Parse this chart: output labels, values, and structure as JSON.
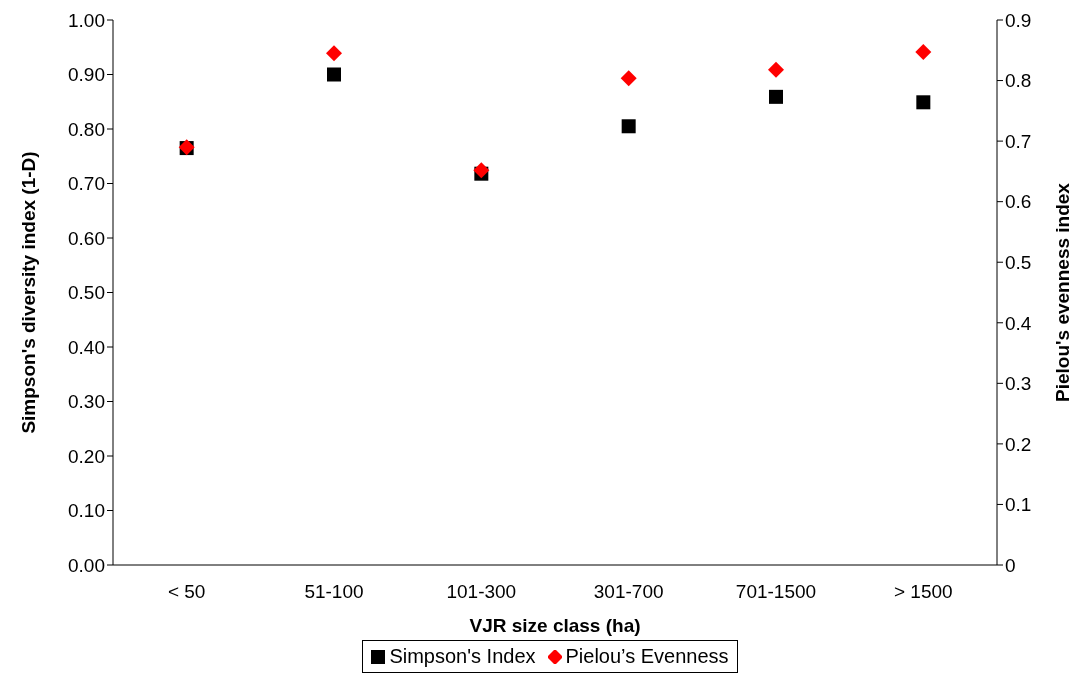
{
  "chart_data": {
    "type": "scatter",
    "xlabel": "VJR size class (ha)",
    "ylabel": "Simpson's diversity index (1-D)",
    "y2label": "Pielou's evenness index",
    "categories": [
      "< 50",
      "51-100",
      "101-300",
      "301-700",
      "701-1500",
      "> 1500"
    ],
    "series": [
      {
        "name": "Simpson's Index",
        "color": "#000000",
        "marker": "square",
        "values": [
          0.765,
          0.9,
          0.718,
          0.805,
          0.859,
          0.849
        ]
      },
      {
        "name": "Pielou’s Evenness",
        "color": "#ff0000",
        "marker": "diamond",
        "axis": "y2",
        "values": [
          0.69,
          0.845,
          0.652,
          0.804,
          0.818,
          0.847
        ]
      }
    ],
    "ylim": [
      0,
      1
    ],
    "yticks": [
      {
        "value": 0,
        "label": "0.00"
      },
      {
        "value": 0.1,
        "label": "0.10"
      },
      {
        "value": 0.2,
        "label": "0.20"
      },
      {
        "value": 0.3,
        "label": "0.30"
      },
      {
        "value": 0.4,
        "label": "0.40"
      },
      {
        "value": 0.5,
        "label": "0.50"
      },
      {
        "value": 0.6,
        "label": "0.60"
      },
      {
        "value": 0.7,
        "label": "0.70"
      },
      {
        "value": 0.8,
        "label": "0.80"
      },
      {
        "value": 0.9,
        "label": "0.90"
      },
      {
        "value": 1,
        "label": "1.00"
      }
    ],
    "y2lim": [
      0,
      0.9
    ],
    "y2ticks": [
      0,
      0.1,
      0.2,
      0.3,
      0.4,
      0.5,
      0.6,
      0.7,
      0.8,
      0.9
    ],
    "grid": false,
    "legend": "bottom"
  }
}
